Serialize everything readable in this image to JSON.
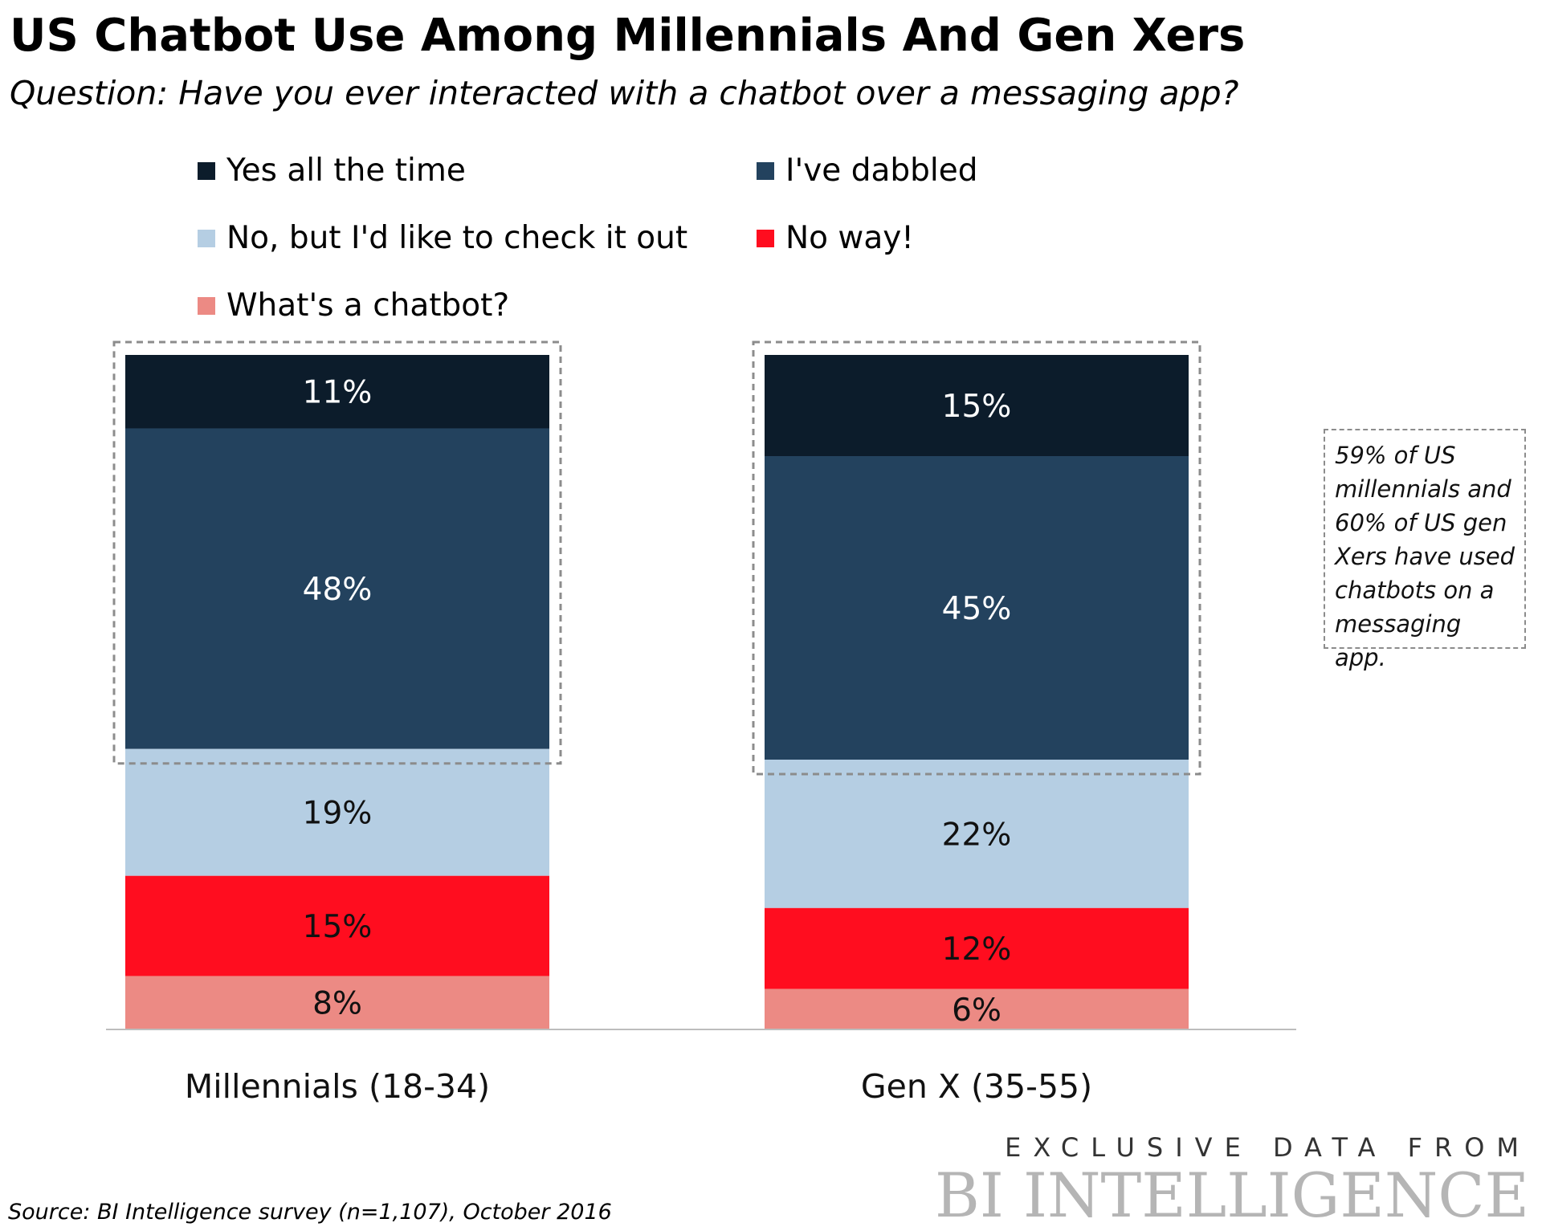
{
  "title": "US Chatbot Use Among Millennials And Gen Xers",
  "subtitle": "Question: Have you ever interacted with a chatbot over a messaging app?",
  "callout": "59% of US millennials and 60% of US gen Xers have used chatbots on a messaging app.",
  "source": "Source: BI Intelligence survey (n=1,107), October 2016",
  "brand": {
    "tagline": "EXCLUSIVE DATA FROM",
    "name": "BI INTELLIGENCE"
  },
  "chart_data": {
    "type": "bar",
    "stacked": true,
    "categories": [
      "Millennials (18-34)",
      "Gen X (35-55)"
    ],
    "series": [
      {
        "name": "Yes all the time",
        "color": "#0c1c2b",
        "values": [
          11,
          15
        ]
      },
      {
        "name": "I've dabbled",
        "color": "#23425e",
        "values": [
          48,
          45
        ]
      },
      {
        "name": "No, but I'd like to check it out",
        "color": "#b5cee3",
        "values": [
          19,
          22
        ]
      },
      {
        "name": "No way!",
        "color": "#ff0d1f",
        "values": [
          15,
          12
        ]
      },
      {
        "name": "What's a chatbot?",
        "color": "#ec8a84",
        "values": [
          8,
          6
        ]
      }
    ],
    "ylim": [
      0,
      100
    ],
    "unit": "%",
    "highlighted_series": [
      "Yes all the time",
      "I've dabbled"
    ],
    "legend_position": "top",
    "grid": false
  }
}
